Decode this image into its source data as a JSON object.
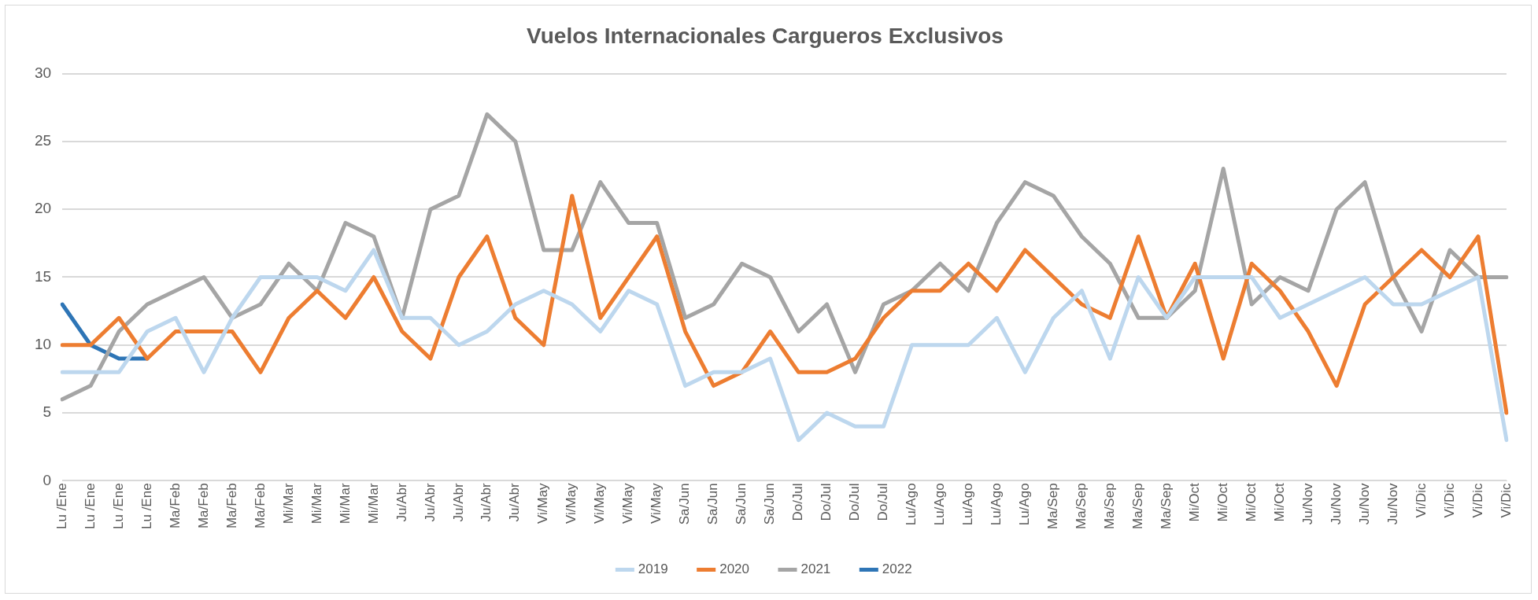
{
  "chart_data": {
    "type": "line",
    "title": "Vuelos Internacionales Cargueros Exclusivos",
    "categories": [
      "Lu /Ene",
      "Lu /Ene",
      "Lu /Ene",
      "Lu /Ene",
      "Ma/Feb",
      "Ma/Feb",
      "Ma/Feb",
      "Ma/Feb",
      "Mi/Mar",
      "Mi/Mar",
      "Mi/Mar",
      "Mi/Mar",
      "Ju/Abr",
      "Ju/Abr",
      "Ju/Abr",
      "Ju/Abr",
      "Ju/Abr",
      "Vi/May",
      "Vi/May",
      "Vi/May",
      "Vi/May",
      "Vi/May",
      "Sa/Jun",
      "Sa/Jun",
      "Sa/Jun",
      "Sa/Jun",
      "Do/Jul",
      "Do/Jul",
      "Do/Jul",
      "Do/Jul",
      "Lu/Ago",
      "Lu/Ago",
      "Lu/Ago",
      "Lu/Ago",
      "Lu/Ago",
      "Ma/Sep",
      "Ma/Sep",
      "Ma/Sep",
      "Ma/Sep",
      "Ma/Sep",
      "Mi/Oct",
      "Mi/Oct",
      "Mi/Oct",
      "Mi/Oct",
      "Ju/Nov",
      "Ju/Nov",
      "Ju/Nov",
      "Ju/Nov",
      "Vi/Dic",
      "Vi/Dic",
      "Vi/Dic",
      "Vi/Dic"
    ],
    "series": [
      {
        "name": "2019",
        "color": "#bdd7ee",
        "values": [
          8,
          8,
          8,
          11,
          12,
          8,
          12,
          15,
          15,
          15,
          14,
          17,
          12,
          12,
          10,
          11,
          13,
          14,
          13,
          11,
          14,
          13,
          7,
          8,
          8,
          9,
          3,
          5,
          4,
          4,
          10,
          10,
          10,
          12,
          8,
          12,
          14,
          9,
          15,
          12,
          15,
          15,
          15,
          12,
          13,
          14,
          15,
          13,
          13,
          14,
          15,
          3
        ]
      },
      {
        "name": "2020",
        "color": "#ed7d31",
        "values": [
          10,
          10,
          12,
          9,
          11,
          11,
          11,
          8,
          12,
          14,
          12,
          15,
          11,
          9,
          15,
          18,
          12,
          10,
          21,
          12,
          15,
          18,
          11,
          7,
          8,
          11,
          8,
          8,
          9,
          12,
          14,
          14,
          16,
          14,
          17,
          15,
          13,
          12,
          18,
          12,
          16,
          9,
          16,
          14,
          11,
          7,
          13,
          15,
          17,
          15,
          18,
          5
        ]
      },
      {
        "name": "2021",
        "color": "#a5a5a5",
        "values": [
          6,
          7,
          11,
          13,
          14,
          15,
          12,
          13,
          16,
          14,
          19,
          18,
          12,
          20,
          21,
          27,
          25,
          17,
          17,
          22,
          19,
          19,
          12,
          13,
          16,
          15,
          11,
          13,
          8,
          13,
          14,
          16,
          14,
          19,
          22,
          21,
          18,
          16,
          12,
          12,
          14,
          23,
          13,
          15,
          14,
          20,
          22,
          15,
          11,
          17,
          15,
          15
        ]
      },
      {
        "name": "2022",
        "color": "#2e75b6",
        "values": [
          13,
          10,
          9,
          9,
          null,
          null,
          null,
          null,
          null,
          null,
          null,
          null,
          null,
          null,
          null,
          null,
          null,
          null,
          null,
          null,
          null,
          null,
          null,
          null,
          null,
          null,
          null,
          null,
          null,
          null,
          null,
          null,
          null,
          null,
          null,
          null,
          null,
          null,
          null,
          null,
          null,
          null,
          null,
          null,
          null,
          null,
          null,
          null,
          null,
          null,
          null,
          null
        ]
      }
    ],
    "ylim": [
      0,
      30
    ],
    "yticks": [
      0,
      5,
      10,
      15,
      20,
      25,
      30
    ],
    "grid": "y",
    "legend": "bottom",
    "marker": "none",
    "line_style": "solid"
  }
}
